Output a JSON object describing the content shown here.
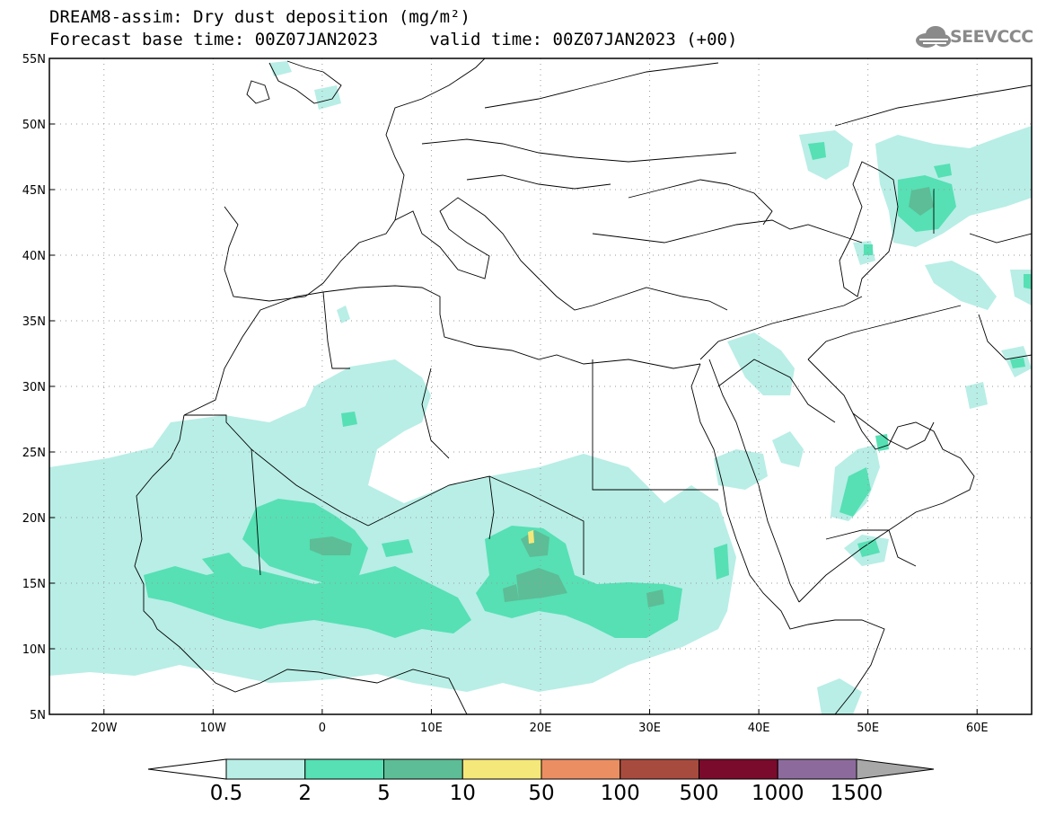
{
  "title_line1": "DREAM8-assim: Dry dust deposition (mg/m²)",
  "title_line2": "Forecast base time: 00Z07JAN2023     valid time: 00Z07JAN2023 (+00)",
  "logo": {
    "icon": "cloud-logo-icon",
    "text": "SEEVCCC"
  },
  "map": {
    "lon_range": [
      -25,
      65
    ],
    "lat_range": [
      5,
      55
    ],
    "lat_ticks": [
      {
        "value": 55,
        "label": "55N"
      },
      {
        "value": 50,
        "label": "50N"
      },
      {
        "value": 45,
        "label": "45N"
      },
      {
        "value": 40,
        "label": "40N"
      },
      {
        "value": 35,
        "label": "35N"
      },
      {
        "value": 30,
        "label": "30N"
      },
      {
        "value": 25,
        "label": "25N"
      },
      {
        "value": 20,
        "label": "20N"
      },
      {
        "value": 15,
        "label": "15N"
      },
      {
        "value": 10,
        "label": "10N"
      },
      {
        "value": 5,
        "label": "5N"
      }
    ],
    "lon_ticks": [
      {
        "value": -20,
        "label": "20W"
      },
      {
        "value": -10,
        "label": "10W"
      },
      {
        "value": 0,
        "label": "0"
      },
      {
        "value": 10,
        "label": "10E"
      },
      {
        "value": 20,
        "label": "20E"
      },
      {
        "value": 30,
        "label": "30E"
      },
      {
        "value": 40,
        "label": "40E"
      },
      {
        "value": 50,
        "label": "50E"
      },
      {
        "value": 60,
        "label": "60E"
      }
    ],
    "grid": true
  },
  "colorbar": {
    "labels": [
      "0.5",
      "2",
      "5",
      "10",
      "50",
      "100",
      "500",
      "1000",
      "1500"
    ],
    "colors": [
      "#b8eee6",
      "#56e0b4",
      "#5dbd96",
      "#f5e87a",
      "#eb8f63",
      "#a84b3f",
      "#7a0b2c",
      "#8c6b9c"
    ],
    "under_color": "#ffffff",
    "over_color": "#a8a8a8"
  },
  "dust_levels": {
    "low": "#b8eee6",
    "mid": "#56e0b4",
    "high": "#5dbd96",
    "peak": "#f5e87a"
  }
}
